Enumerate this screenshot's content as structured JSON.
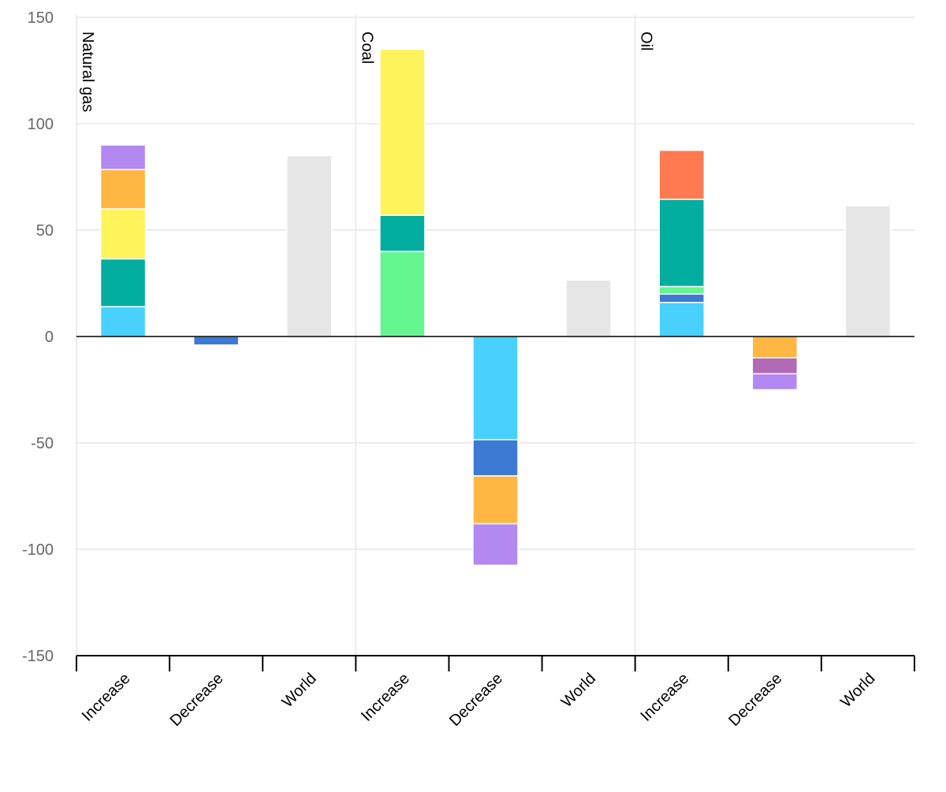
{
  "chart_data": {
    "type": "bar",
    "stacked": true,
    "ylim": [
      -150,
      150
    ],
    "y_ticks": [
      "150",
      "100",
      "50",
      "0",
      "-50",
      "-100",
      "-150"
    ],
    "y_tick_values": [
      150,
      100,
      50,
      0,
      -50,
      -100,
      -150
    ],
    "grid": true,
    "colors": {
      "world": "#e6e6e6",
      "zero_line": "#000000",
      "grid": "#e6e6e6"
    },
    "groups": [
      {
        "label": "Natural gas",
        "bars": [
          {
            "category": "Increase",
            "segments": [
              {
                "value": 14,
                "color": "#48d1ff"
              },
              {
                "value": 22.5,
                "color": "#00ad9f"
              },
              {
                "value": 23.5,
                "color": "#fff35c"
              },
              {
                "value": 18.5,
                "color": "#ffb643"
              },
              {
                "value": 11.5,
                "color": "#b388f0"
              }
            ]
          },
          {
            "category": "Decrease",
            "segments": [
              {
                "value": -4,
                "color": "#3c7ad3"
              }
            ]
          },
          {
            "category": "World",
            "segments": [
              {
                "value": 85,
                "color": "#e6e6e6"
              }
            ]
          }
        ]
      },
      {
        "label": "Coal",
        "bars": [
          {
            "category": "Increase",
            "segments": [
              {
                "value": 40,
                "color": "#64f58f"
              },
              {
                "value": 17,
                "color": "#00ad9f"
              },
              {
                "value": 78,
                "color": "#fff35c"
              }
            ]
          },
          {
            "category": "Decrease",
            "segments": [
              {
                "value": -48.5,
                "color": "#48d1ff"
              },
              {
                "value": -17,
                "color": "#3c7ad3"
              },
              {
                "value": -22.5,
                "color": "#ffb643"
              },
              {
                "value": -19.5,
                "color": "#b388f0"
              }
            ]
          },
          {
            "category": "World",
            "segments": [
              {
                "value": 26.5,
                "color": "#e6e6e6"
              }
            ]
          }
        ]
      },
      {
        "label": "Oil",
        "bars": [
          {
            "category": "Increase",
            "segments": [
              {
                "value": 16,
                "color": "#48d1ff"
              },
              {
                "value": 4,
                "color": "#3c7ad3"
              },
              {
                "value": 3.5,
                "color": "#64f58f"
              },
              {
                "value": 41,
                "color": "#00ad9f"
              },
              {
                "value": 23,
                "color": "#ff7a50"
              }
            ]
          },
          {
            "category": "Decrease",
            "segments": [
              {
                "value": -10,
                "color": "#ffb643"
              },
              {
                "value": -7.5,
                "color": "#b16ab6"
              },
              {
                "value": -7.5,
                "color": "#b388f0"
              }
            ]
          },
          {
            "category": "World",
            "segments": [
              {
                "value": 61.5,
                "color": "#e6e6e6"
              }
            ]
          }
        ]
      }
    ]
  }
}
